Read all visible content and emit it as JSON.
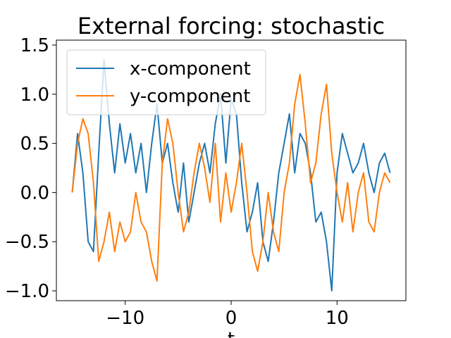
{
  "chart_data": {
    "type": "line",
    "title": "External forcing: stochastic",
    "xlabel": "t",
    "ylabel": "",
    "xlim": [
      -16.5,
      16.5
    ],
    "ylim": [
      -1.1,
      1.55
    ],
    "xticks": [
      -10,
      0,
      10
    ],
    "xtick_labels": [
      "−10",
      "0",
      "10"
    ],
    "yticks": [
      -1.0,
      -0.5,
      0.0,
      0.5,
      1.0,
      1.5
    ],
    "ytick_labels": [
      "−1.0",
      "−0.5",
      "0.0",
      "0.5",
      "1.0",
      "1.5"
    ],
    "grid": false,
    "legend_position": "top-left",
    "x": [
      -15.0,
      -14.5,
      -14.0,
      -13.5,
      -13.0,
      -12.5,
      -12.0,
      -11.5,
      -11.0,
      -10.5,
      -10.0,
      -9.5,
      -9.0,
      -8.5,
      -8.0,
      -7.5,
      -7.0,
      -6.5,
      -6.0,
      -5.5,
      -5.0,
      -4.5,
      -4.0,
      -3.5,
      -3.0,
      -2.5,
      -2.0,
      -1.5,
      -1.0,
      -0.5,
      0.0,
      0.5,
      1.0,
      1.5,
      2.0,
      2.5,
      3.0,
      3.5,
      4.0,
      4.5,
      5.0,
      5.5,
      6.0,
      6.5,
      7.0,
      7.5,
      8.0,
      8.5,
      9.0,
      9.5,
      10.0,
      10.5,
      11.0,
      11.5,
      12.0,
      12.5,
      13.0,
      13.5,
      14.0,
      14.5,
      15.0
    ],
    "series": [
      {
        "name": "x-component",
        "color": "#1f77b4",
        "values": [
          0.0,
          0.6,
          0.2,
          -0.5,
          -0.6,
          0.4,
          1.35,
          0.7,
          0.2,
          0.7,
          0.3,
          0.6,
          0.2,
          0.5,
          0.0,
          0.5,
          0.9,
          0.3,
          0.5,
          0.1,
          -0.2,
          0.3,
          -0.3,
          0.0,
          0.3,
          0.5,
          0.2,
          0.7,
          1.0,
          0.3,
          0.95,
          0.8,
          0.1,
          -0.4,
          -0.2,
          0.1,
          -0.5,
          -0.7,
          -0.3,
          0.2,
          0.5,
          0.8,
          0.2,
          0.6,
          0.5,
          0.2,
          -0.3,
          -0.2,
          -0.5,
          -1.0,
          0.2,
          0.6,
          0.4,
          0.2,
          0.3,
          0.5,
          0.2,
          0.0,
          0.3,
          0.4,
          0.2
        ]
      },
      {
        "name": "y-component",
        "color": "#ff7f0e",
        "values": [
          0.0,
          0.5,
          0.75,
          0.6,
          0.1,
          -0.7,
          -0.5,
          -0.2,
          -0.6,
          -0.3,
          -0.5,
          -0.4,
          0.0,
          -0.3,
          -0.4,
          -0.7,
          -0.9,
          0.3,
          0.75,
          0.5,
          0.0,
          -0.4,
          -0.2,
          0.2,
          0.5,
          0.25,
          -0.1,
          0.5,
          -0.3,
          0.2,
          -0.2,
          0.1,
          0.5,
          0.0,
          -0.6,
          -0.8,
          -0.5,
          0.0,
          -0.4,
          -0.6,
          0.0,
          0.3,
          0.9,
          1.2,
          0.7,
          0.1,
          0.3,
          0.8,
          1.1,
          0.4,
          0.0,
          -0.3,
          0.1,
          -0.4,
          0.0,
          0.2,
          -0.3,
          -0.4,
          0.0,
          0.2,
          0.1
        ]
      }
    ]
  }
}
